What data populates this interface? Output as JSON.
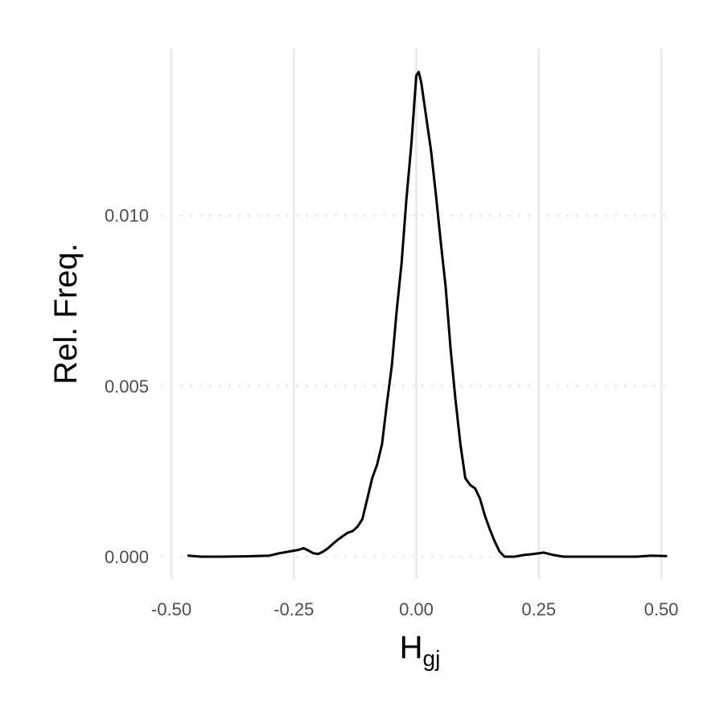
{
  "chart_data": {
    "type": "line",
    "title": "",
    "xlabel": "H",
    "xlabel_subscript": "gj",
    "ylabel": "Rel. Freq.",
    "xlim": [
      -0.5,
      0.5
    ],
    "ylim": [
      -0.0006,
      0.0144
    ],
    "x_ticks": [
      -0.5,
      -0.25,
      0.0,
      0.25,
      0.5
    ],
    "x_tick_labels": [
      "-0.50",
      "-0.25",
      "0.00",
      "0.25",
      "0.50"
    ],
    "y_ticks": [
      0.0,
      0.005,
      0.01
    ],
    "y_tick_labels": [
      "0.000",
      "0.005",
      "0.010"
    ],
    "grid": {
      "vertical": "solid",
      "horizontal": "dotted"
    },
    "legend": "none",
    "colors": {
      "line": "#000000",
      "grid": "#ebebeb",
      "tick_text": "#4d4d4d"
    },
    "series": [
      {
        "x": [
          -0.465,
          -0.44,
          -0.4,
          -0.35,
          -0.3,
          -0.28,
          -0.26,
          -0.24,
          -0.23,
          -0.22,
          -0.21,
          -0.2,
          -0.19,
          -0.18,
          -0.17,
          -0.16,
          -0.15,
          -0.14,
          -0.13,
          -0.12,
          -0.11,
          -0.1,
          -0.09,
          -0.08,
          -0.07,
          -0.06,
          -0.05,
          -0.04,
          -0.03,
          -0.02,
          -0.01,
          0.0,
          0.005,
          0.01,
          0.02,
          0.03,
          0.04,
          0.05,
          0.06,
          0.07,
          0.08,
          0.09,
          0.1,
          0.11,
          0.12,
          0.13,
          0.14,
          0.15,
          0.16,
          0.17,
          0.18,
          0.2,
          0.22,
          0.24,
          0.26,
          0.28,
          0.3,
          0.35,
          0.4,
          0.45,
          0.48,
          0.51
        ],
        "y": [
          3e-05,
          0.0,
          0.0,
          1e-05,
          3e-05,
          0.0001,
          0.00015,
          0.0002,
          0.00025,
          0.00018,
          0.0001,
          8e-05,
          0.00015,
          0.00025,
          0.00038,
          0.0005,
          0.0006,
          0.0007,
          0.00075,
          0.00088,
          0.0011,
          0.0017,
          0.0023,
          0.0027,
          0.0033,
          0.0045,
          0.0056,
          0.0072,
          0.0086,
          0.0105,
          0.0121,
          0.0141,
          0.0142,
          0.0139,
          0.0129,
          0.0119,
          0.0106,
          0.0092,
          0.0079,
          0.0061,
          0.0046,
          0.0033,
          0.0023,
          0.0021,
          0.002,
          0.0017,
          0.0012,
          0.0008,
          0.00045,
          0.00015,
          0.0,
          0.0,
          5e-05,
          8e-05,
          0.00012,
          5e-05,
          0.0,
          0.0,
          0.0,
          0.0,
          3e-05,
          2e-05
        ]
      }
    ]
  }
}
